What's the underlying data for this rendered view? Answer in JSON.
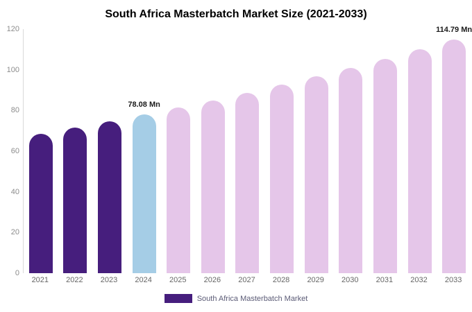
{
  "title": "South Africa Masterbatch Market Size (2021-2033)",
  "legend": {
    "label": "South Africa Masterbatch Market",
    "swatch_color": "#461e7d"
  },
  "colors": {
    "historical_bar": "#461e7d",
    "highlight_bar": "#a5cde6",
    "forecast_bar": "#e5c6e9",
    "axis_line": "#d9d9d9"
  },
  "chart_data": {
    "type": "bar",
    "title": "South Africa Masterbatch Market Size (2021-2033)",
    "categories": [
      "2021",
      "2022",
      "2023",
      "2024",
      "2025",
      "2026",
      "2027",
      "2028",
      "2029",
      "2030",
      "2031",
      "2032",
      "2033"
    ],
    "values": [
      68.65,
      71.66,
      74.8,
      78.08,
      81.5,
      85.07,
      88.8,
      92.69,
      96.75,
      100.99,
      105.41,
      110.03,
      114.79
    ],
    "bar_colors": [
      "#461e7d",
      "#461e7d",
      "#461e7d",
      "#a5cde6",
      "#e5c6e9",
      "#e5c6e9",
      "#e5c6e9",
      "#e5c6e9",
      "#e5c6e9",
      "#e5c6e9",
      "#e5c6e9",
      "#e5c6e9",
      "#e5c6e9"
    ],
    "ylim": [
      0,
      120
    ],
    "yticks": [
      0,
      20,
      40,
      60,
      80,
      100,
      120
    ],
    "xlabel": "",
    "ylabel": "",
    "grid": false,
    "legend_position": "bottom",
    "annotations": [
      {
        "category": "2024",
        "text": "78.08 Mn"
      },
      {
        "category": "2033",
        "text": "114.79 Mn"
      }
    ]
  }
}
